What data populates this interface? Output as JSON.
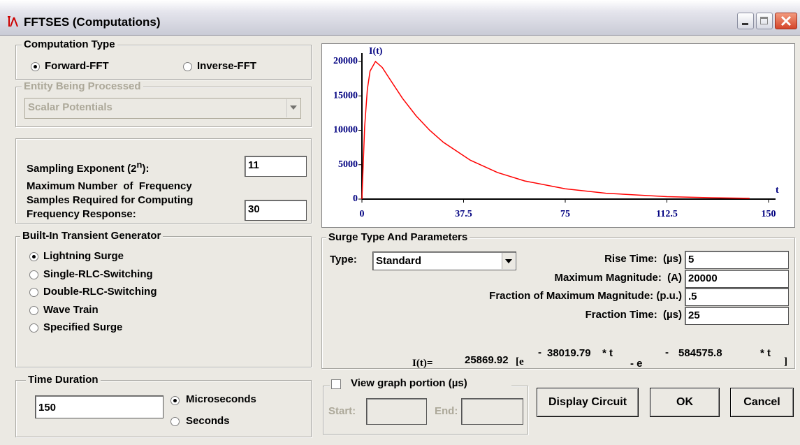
{
  "window": {
    "title": "FFTSES (Computations)"
  },
  "computation_type": {
    "title": "Computation Type",
    "options": [
      "Forward-FFT",
      "Inverse-FFT"
    ],
    "selected": 0
  },
  "entity": {
    "title": "Entity Being Processed",
    "value": "Scalar Potentials"
  },
  "sampling": {
    "exponent_label": [
      "Sampling Exponent (2",
      "n",
      "):"
    ],
    "exponent": "11",
    "max_samples_label": [
      "Maximum Number  of  Frequency",
      "Samples Required for Computing",
      "Frequency Response:"
    ],
    "max_samples": "30"
  },
  "generator": {
    "title": "Built-In Transient Generator",
    "options": [
      "Lightning Surge",
      "Single-RLC-Switching",
      "Double-RLC-Switching",
      "Wave Train",
      "Specified Surge"
    ],
    "selected": 0
  },
  "time_duration": {
    "title": "Time Duration",
    "value": "150",
    "units": [
      "Microseconds",
      "Seconds"
    ],
    "selected": 0
  },
  "chart_data": {
    "type": "line",
    "ylabel": "I(t)",
    "xlabel": "t",
    "x": [
      0,
      1,
      2,
      3,
      5,
      7.5,
      10,
      15,
      20,
      25,
      30,
      40,
      50,
      60,
      75,
      90,
      112.5,
      130,
      143
    ],
    "series": [
      {
        "color": "#ff0000",
        "values": [
          0,
          10488,
          15941,
          18606,
          20000,
          19128,
          17612,
          14622,
          12094,
          10001,
          8268,
          5653,
          3865,
          2644,
          1495,
          846,
          359,
          185,
          113
        ]
      }
    ],
    "xlim": [
      0,
      150
    ],
    "ylim": [
      0,
      20000
    ],
    "xticks": [
      0,
      37.5,
      75,
      112.5,
      150
    ],
    "yticks": [
      0,
      5000,
      10000,
      15000,
      20000
    ]
  },
  "surge": {
    "title": "Surge Type And Parameters",
    "type_label": "Type:",
    "type": "Standard",
    "params": [
      {
        "label": "Rise Time:  (µs)",
        "value": "5"
      },
      {
        "label": "Maximum Magnitude:  (A)",
        "value": "20000"
      },
      {
        "label": "Fraction of Maximum Magnitude: (p.u.)",
        "value": ".5"
      },
      {
        "label": "Fraction Time:  (µs)",
        "value": "25"
      }
    ],
    "formula": {
      "lhs": "I(t)=",
      "coef": "25869.92",
      "open": "[e",
      "minus1": "-",
      "a": "38019.79",
      "t1": "* t",
      "mid": "- e",
      "minus2": "-",
      "b": "584575.8",
      "t2": "* t",
      "close": "]"
    }
  },
  "view": {
    "label": "View graph portion (µs)",
    "checked": false,
    "start_label": "Start:",
    "end_label": "End:"
  },
  "buttons": [
    "Display Circuit",
    "OK",
    "Cancel"
  ]
}
